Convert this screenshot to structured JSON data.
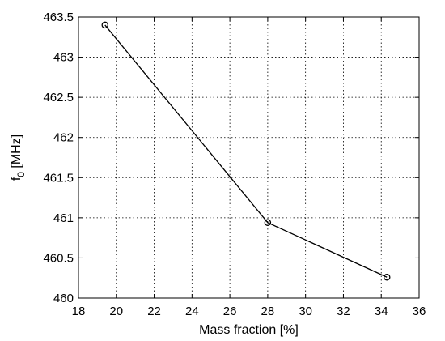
{
  "chart_data": {
    "type": "line",
    "title": "",
    "xlabel": "Mass fraction [%]",
    "ylabel_main": "f",
    "ylabel_sub": "0",
    "ylabel_unit": " [MHz]",
    "xlim": [
      18,
      36
    ],
    "ylim": [
      460,
      463.5
    ],
    "xticks": [
      18,
      20,
      22,
      24,
      26,
      28,
      30,
      32,
      34,
      36
    ],
    "xtick_labels": [
      "18",
      "20",
      "22",
      "24",
      "26",
      "28",
      "30",
      "32",
      "34",
      "36"
    ],
    "yticks": [
      460,
      460.5,
      461,
      461.5,
      462,
      462.5,
      463,
      463.5
    ],
    "ytick_labels": [
      "460",
      "460.5",
      "461",
      "461.5",
      "462",
      "462.5",
      "463",
      "463.5"
    ],
    "grid": true,
    "grid_style": "dotted",
    "marker": "circle",
    "line_color": "#000000",
    "series": [
      {
        "x": [
          19.4,
          28.0,
          34.3
        ],
        "y": [
          463.4,
          460.94,
          460.26
        ]
      }
    ]
  }
}
